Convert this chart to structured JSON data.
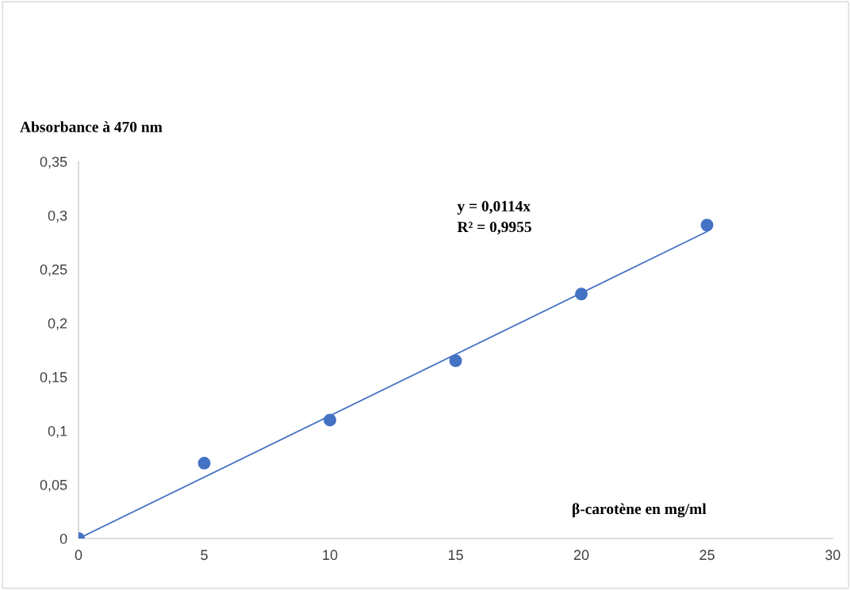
{
  "chart_data": {
    "type": "scatter",
    "ylabel": "Absorbance à 470 nm",
    "xlabel": "β-carotène en mg/ml",
    "annotations": [
      "y = 0,0114x",
      "R² = 0,9955"
    ],
    "xlim": [
      0,
      30
    ],
    "xticks": [
      0,
      5,
      10,
      15,
      20,
      25,
      30
    ],
    "ylim": [
      0,
      0.35
    ],
    "yticks": [
      {
        "value": 0,
        "label": "0"
      },
      {
        "value": 0.05,
        "label": "0,05"
      },
      {
        "value": 0.1,
        "label": "0,1"
      },
      {
        "value": 0.15,
        "label": "0,15"
      },
      {
        "value": 0.2,
        "label": "0,2"
      },
      {
        "value": 0.25,
        "label": "0,25"
      },
      {
        "value": 0.3,
        "label": "0,3"
      },
      {
        "value": 0.35,
        "label": "0,35"
      }
    ],
    "grid": false,
    "legend": false,
    "marker": "circle",
    "series": [
      {
        "color": "#4472c4",
        "x": [
          0,
          5,
          10,
          15,
          20,
          25
        ],
        "values": [
          0,
          0.07,
          0.11,
          0.165,
          0.227,
          0.291
        ]
      },
      {
        "type": "line",
        "color": "#4472c4",
        "x": [
          0,
          25
        ],
        "values": [
          0,
          0.285
        ],
        "marker": "none",
        "line_style": "solid"
      }
    ]
  }
}
